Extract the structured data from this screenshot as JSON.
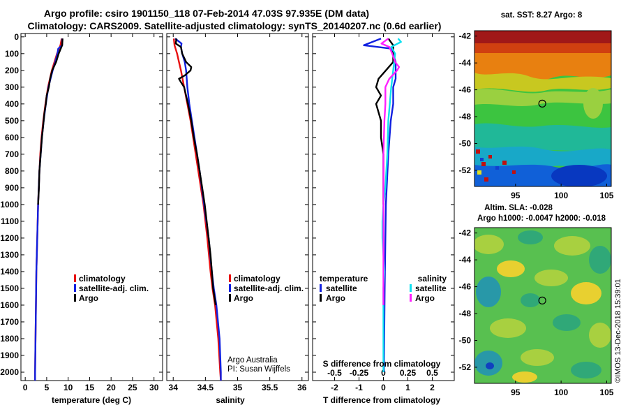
{
  "title": {
    "line1": "Argo profile: csiro 1901150_118 07-Feb-2014 47.03S 97.935E (DM data)",
    "line2": "Climatology: CARS2009. Satellite-adjusted climatology: synTS_20140207.nc (0.6d earlier)"
  },
  "colors": {
    "climatology": "#e81010",
    "satellite": "#1020e0",
    "argo": "#000000",
    "argo_s": "#ff20ff",
    "satellite_s": "#10e0f0"
  },
  "depth_ticks": [
    "0",
    "100",
    "200",
    "300",
    "400",
    "500",
    "600",
    "700",
    "800",
    "900",
    "1000",
    "1100",
    "1200",
    "1300",
    "1400",
    "1500",
    "1600",
    "1700",
    "1800",
    "1900",
    "2000"
  ],
  "chart_data": [
    {
      "type": "line",
      "id": "temperature",
      "xlabel": "temperature (deg C)",
      "ylabel": "depth",
      "xlim": [
        -1,
        32
      ],
      "ylim": [
        2050,
        -20
      ],
      "xticks": [
        "0",
        "5",
        "10",
        "15",
        "20",
        "25",
        "30"
      ],
      "legend": [
        "climatology",
        "satellite-adj. clim.",
        "Argo"
      ],
      "series": [
        {
          "name": "climatology",
          "depth": [
            10,
            50,
            100,
            150,
            200,
            300,
            400,
            500,
            600,
            700,
            800,
            1000,
            1200,
            1400,
            1600,
            1800,
            2000,
            2050
          ],
          "values": [
            8.5,
            8.2,
            7.4,
            6.8,
            6.2,
            5.3,
            4.7,
            4.2,
            3.8,
            3.5,
            3.3,
            3.0,
            2.8,
            2.6,
            2.5,
            2.4,
            2.3,
            2.3
          ]
        },
        {
          "name": "satellite-adj. clim.",
          "depth": [
            10,
            50,
            70,
            100,
            150,
            200,
            300,
            400,
            500,
            600,
            700,
            800,
            1000,
            1200,
            1400,
            1600,
            1800,
            2000,
            2050
          ],
          "values": [
            8.6,
            8.6,
            7.7,
            7.5,
            7.0,
            6.4,
            5.4,
            4.8,
            4.3,
            3.9,
            3.6,
            3.3,
            3.0,
            2.8,
            2.6,
            2.5,
            2.4,
            2.3,
            2.3
          ]
        },
        {
          "name": "Argo",
          "depth": [
            10,
            50,
            100,
            150,
            200,
            250,
            300,
            350,
            400,
            450,
            500,
            600,
            700,
            800,
            900,
            1000
          ],
          "values": [
            8.7,
            8.6,
            7.8,
            7.2,
            6.3,
            5.8,
            5.5,
            5.0,
            4.8,
            4.5,
            4.3,
            3.9,
            3.6,
            3.3,
            3.2,
            3.0
          ]
        }
      ]
    },
    {
      "type": "line",
      "id": "salinity",
      "xlabel": "salinity",
      "ylabel": "depth",
      "xlim": [
        33.9,
        36.1
      ],
      "ylim": [
        2050,
        -20
      ],
      "xticks": [
        "34",
        "34.5",
        "35",
        "35.5",
        "36"
      ],
      "legend": [
        "climatology",
        "satellite-adj. clim.",
        "Argo"
      ],
      "series": [
        {
          "name": "climatology",
          "depth": [
            10,
            50,
            100,
            150,
            200,
            300,
            400,
            500,
            600,
            700,
            800,
            900,
            1000,
            1200,
            1400,
            1500,
            1600,
            1800,
            2000,
            2050
          ],
          "values": [
            34.01,
            34.02,
            34.06,
            34.09,
            34.12,
            34.17,
            34.22,
            34.27,
            34.31,
            34.35,
            34.39,
            34.43,
            34.47,
            34.53,
            34.58,
            34.61,
            34.65,
            34.7,
            34.73,
            34.74
          ]
        },
        {
          "name": "satellite-adj. clim.",
          "depth": [
            10,
            40,
            60,
            100,
            150,
            200,
            250,
            300,
            400,
            500,
            600,
            700,
            800,
            1000,
            1200,
            1400,
            1500,
            1600,
            1800,
            2000,
            2050
          ],
          "values": [
            34.03,
            34.13,
            34.12,
            34.14,
            34.18,
            34.2,
            34.21,
            34.22,
            34.25,
            34.29,
            34.33,
            34.37,
            34.41,
            34.48,
            34.55,
            34.6,
            34.63,
            34.67,
            34.72,
            34.74,
            34.74
          ]
        },
        {
          "name": "Argo",
          "depth": [
            10,
            40,
            60,
            100,
            150,
            180,
            200,
            230,
            250,
            270,
            300,
            400,
            500,
            600,
            700,
            800,
            900,
            1000,
            1100,
            1200,
            1300,
            1400,
            1500,
            1600
          ],
          "values": [
            34.05,
            34.04,
            34.12,
            34.14,
            34.2,
            34.28,
            34.27,
            34.18,
            34.09,
            34.12,
            34.17,
            34.23,
            34.28,
            34.32,
            34.37,
            34.41,
            34.45,
            34.49,
            34.52,
            34.55,
            34.58,
            34.6,
            34.62,
            34.66
          ]
        }
      ]
    },
    {
      "type": "line",
      "id": "difference",
      "xlabel": "T difference from climatology",
      "xlabel_top": "S difference from climatology",
      "ylabel": "depth",
      "xlim": [
        -2.9,
        2.9
      ],
      "ylim": [
        2050,
        -20
      ],
      "xticks": [
        "-2",
        "-1",
        "0",
        "1",
        "2"
      ],
      "xticks_top": [
        "-0.5",
        "-0.25",
        "0",
        "0.25",
        "0.5"
      ],
      "legend_temperature": {
        "title": "temperature",
        "items": [
          "satellite",
          "Argo"
        ]
      },
      "legend_salinity": {
        "title": "salinity",
        "items": [
          "satellite",
          "Argo"
        ]
      },
      "series": [
        {
          "name": "temperature satellite",
          "depth": [
            10,
            50,
            70,
            100,
            150,
            200,
            250,
            300,
            400,
            500,
            700,
            1000,
            1500,
            2000
          ],
          "values": [
            -0.1,
            -0.8,
            0.3,
            0.4,
            0.5,
            0.5,
            0.5,
            0.4,
            0.4,
            0.3,
            0.2,
            0.1,
            0.05,
            0.02
          ]
        },
        {
          "name": "temperature Argo",
          "depth": [
            10,
            50,
            100,
            150,
            200,
            250,
            300,
            350,
            400,
            450,
            500,
            600,
            700,
            800,
            900,
            1000
          ],
          "values": [
            0.2,
            0.4,
            0.4,
            0.4,
            0.1,
            -0.2,
            -0.3,
            -0.1,
            -0.3,
            -0.2,
            -0.1,
            -0.1,
            0.0,
            0.0,
            0.0,
            0.0
          ]
        },
        {
          "name": "salinity satellite",
          "depth": [
            10,
            30,
            60,
            100,
            200,
            300,
            500,
            700,
            900,
            1000,
            1100,
            1200,
            1300,
            1400,
            1500,
            1600,
            1700,
            1800,
            1900,
            2000
          ],
          "values": [
            0.15,
            0.18,
            0.08,
            0.12,
            0.1,
            0.08,
            0.05,
            0.04,
            0.02,
            0.0,
            -0.01,
            -0.01,
            0.0,
            0.01,
            0.0,
            0.0,
            0.0,
            0.0,
            0.0,
            0.0
          ]
        },
        {
          "name": "salinity Argo",
          "depth": [
            10,
            40,
            60,
            100,
            150,
            180,
            200,
            250,
            300,
            400,
            500,
            700,
            900,
            1100,
            1300,
            1500,
            1600
          ],
          "values": [
            0.05,
            -0.02,
            0.06,
            0.09,
            0.12,
            0.16,
            0.14,
            0.06,
            0.02,
            0.02,
            0.01,
            0.0,
            0.0,
            0.0,
            0.0,
            0.0,
            0.0
          ]
        }
      ]
    }
  ],
  "credit": {
    "line1": "Argo Australia",
    "line2": "PI: Susan Wijffels"
  },
  "map_sst": {
    "title": "sat. SST: 8.27 Argo: 8",
    "xticks": [
      "95",
      "100",
      "105"
    ],
    "yticks": [
      "-42",
      "-44",
      "-46",
      "-48",
      "-50",
      "-52"
    ],
    "lon_range": [
      90.5,
      105.5
    ],
    "lat_range": [
      -53.2,
      -41.6
    ],
    "argo_position": {
      "lon": 97.935,
      "lat": -47.03
    }
  },
  "map_sla": {
    "title_line1": "Altim. SLA: -0.028",
    "title_line2": "Argo h1000: -0.0047 h2000: -0.018",
    "xticks": [
      "95",
      "100",
      "105"
    ],
    "yticks": [
      "-42",
      "-44",
      "-46",
      "-48",
      "-50",
      "-52"
    ],
    "lon_range": [
      90.5,
      105.5
    ],
    "lat_range": [
      -53.2,
      -41.6
    ],
    "argo_position": {
      "lon": 97.935,
      "lat": -47.03
    }
  },
  "stamp": "©IMOS 13-Dec-2018 15:39:01"
}
